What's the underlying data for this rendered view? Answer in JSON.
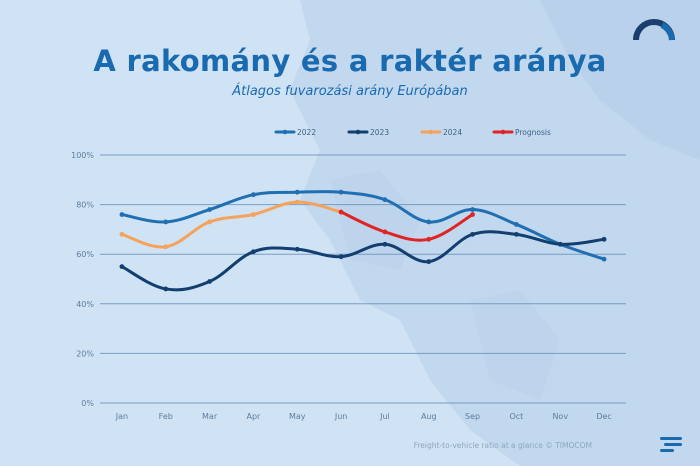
{
  "title": "A rakomány és a raktér aránya",
  "subtitle": "Átlagos fuvarozási arány Európában",
  "footer": "Freight-to-vehicle ratio at a glance © TIMOCOM",
  "icons": {
    "top_right": "gauge-icon",
    "bottom_right": "timocom-logo-icon"
  },
  "colors": {
    "background": "#cfe3f5",
    "title": "#1a6ab0"
  },
  "chart_data": {
    "type": "line",
    "title": "A rakomány és a raktér aránya",
    "subtitle": "Átlagos fuvarozási arány Európában",
    "categories": [
      "Jan",
      "Feb",
      "Mar",
      "Apr",
      "May",
      "Jun",
      "Jul",
      "Aug",
      "Sep",
      "Oct",
      "Nov",
      "Dec"
    ],
    "ylim": [
      0,
      100
    ],
    "yticks": [
      "0%",
      "20%",
      "40%",
      "60%",
      "80%",
      "100%"
    ],
    "ytick_values": [
      0,
      20,
      40,
      60,
      80,
      100
    ],
    "grid": true,
    "legend_position": "top",
    "series": [
      {
        "name": "2022",
        "color": "#1f6fb2",
        "values": [
          76,
          73,
          78,
          84,
          85,
          85,
          82,
          73,
          78,
          72,
          64,
          58
        ]
      },
      {
        "name": "2023",
        "color": "#123f70",
        "values": [
          55,
          46,
          49,
          61,
          62,
          59,
          64,
          57,
          68,
          68,
          64,
          66
        ]
      },
      {
        "name": "2024",
        "color": "#f5a25a",
        "values": [
          68,
          63,
          73,
          76,
          81,
          77,
          null,
          null,
          null,
          null,
          null,
          null
        ]
      },
      {
        "name": "Prognosis",
        "color": "#e02424",
        "values": [
          null,
          null,
          null,
          null,
          null,
          77,
          69,
          66,
          76,
          null,
          null,
          null
        ]
      }
    ]
  }
}
